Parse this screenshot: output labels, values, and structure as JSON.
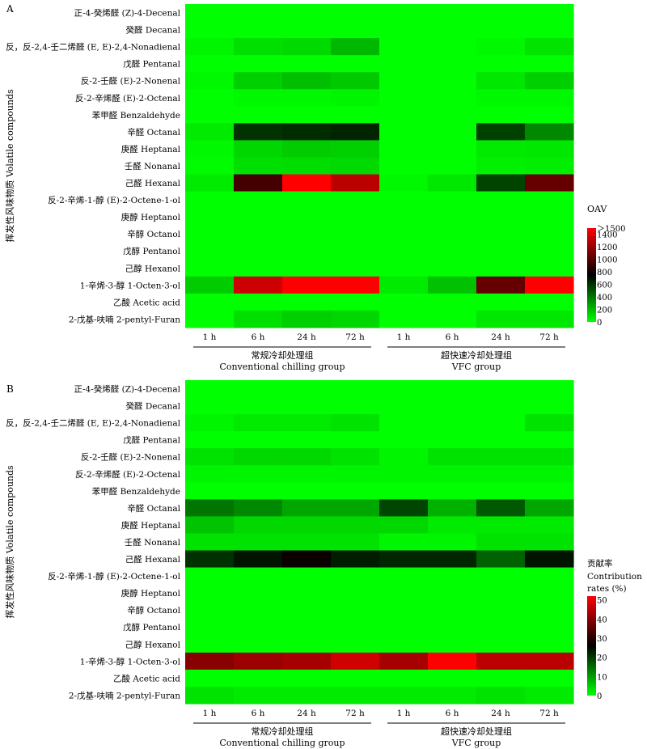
{
  "chart_data": [
    {
      "type": "heatmap",
      "panel_label": "A",
      "ylabel": "挥发性风味物质 Volatile compounds",
      "rows": [
        "正-4-癸烯醛 (Z)-4-Decenal",
        "癸醛 Decanal",
        "反，反-2,4-壬二烯醛 (E, E)-2,4-Nonadienal",
        "戊醛 Pentanal",
        "反-2-壬醛 (E)-2-Nonenal",
        "反-2-辛烯醛 (E)-2-Octenal",
        "苯甲醛 Benzaldehyde",
        "辛醛 Octanal",
        "庚醛 Heptanal",
        "壬醛 Nonanal",
        "己醛 Hexanal",
        "反-2-辛烯-1-醇 (E)-2-Octene-1-ol",
        "庚醇 Heptanol",
        "辛醇 Octanol",
        "戊醇 Pentanol",
        "己醇 Hexanol",
        "1-辛烯-3-醇 1-Octen-3-ol",
        "乙酸 Acetic acid",
        "2-戊基-呋喃 2-pentyl-Furan"
      ],
      "columns": [
        "1 h",
        "6 h",
        "24 h",
        "72 h",
        "1 h",
        "6 h",
        "24 h",
        "72 h"
      ],
      "groups": [
        {
          "label_cn": "常规冷却处理组",
          "label_en": "Conventional chilling group"
        },
        {
          "label_cn": "超快速冷却处理组",
          "label_en": "VFC group"
        }
      ],
      "values": [
        [
          0,
          0,
          0,
          0,
          0,
          0,
          0,
          0
        ],
        [
          0,
          0,
          0,
          0,
          0,
          0,
          0,
          0
        ],
        [
          30,
          90,
          110,
          210,
          0,
          0,
          20,
          80
        ],
        [
          0,
          0,
          0,
          0,
          0,
          0,
          0,
          0
        ],
        [
          20,
          140,
          190,
          160,
          0,
          0,
          70,
          140
        ],
        [
          0,
          20,
          20,
          30,
          0,
          0,
          20,
          20
        ],
        [
          0,
          0,
          0,
          0,
          0,
          0,
          0,
          0
        ],
        [
          60,
          600,
          620,
          640,
          0,
          0,
          560,
          350
        ],
        [
          20,
          120,
          150,
          140,
          0,
          0,
          60,
          70
        ],
        [
          10,
          90,
          100,
          110,
          0,
          0,
          40,
          50
        ],
        [
          60,
          950,
          1500,
          1300,
          20,
          70,
          550,
          1050
        ],
        [
          0,
          0,
          0,
          0,
          0,
          0,
          0,
          0
        ],
        [
          0,
          0,
          0,
          0,
          0,
          0,
          0,
          0
        ],
        [
          0,
          0,
          0,
          0,
          0,
          0,
          0,
          0
        ],
        [
          0,
          0,
          0,
          0,
          0,
          0,
          0,
          0
        ],
        [
          0,
          0,
          0,
          0,
          0,
          0,
          0,
          0
        ],
        [
          150,
          1350,
          1500,
          1500,
          60,
          180,
          1050,
          1500
        ],
        [
          0,
          0,
          0,
          0,
          0,
          0,
          0,
          0
        ],
        [
          0,
          90,
          140,
          120,
          0,
          0,
          70,
          70
        ]
      ],
      "colorbar": {
        "title": "OAV",
        "min": 0,
        "max": 1500,
        "ticks": [
          0,
          200,
          400,
          600,
          800,
          1000,
          1200,
          1400
        ],
        "top_label": "＞1500",
        "colors": {
          "low": "#00ff00",
          "mid": "#000000",
          "high": "#ff0000"
        }
      }
    },
    {
      "type": "heatmap",
      "panel_label": "B",
      "ylabel": "挥发性风味物质 Volatile compounds",
      "rows": [
        "正-4-癸烯醛 (Z)-4-Decenal",
        "癸醛 Decanal",
        "反，反-2,4-壬二烯醛 (E, E)-2,4-Nonadienal",
        "戊醛 Pentanal",
        "反-2-壬醛 (E)-2-Nonenal",
        "反-2-辛烯醛 (E)-2-Octenal",
        "苯甲醛 Benzaldehyde",
        "辛醛 Octanal",
        "庚醛 Heptanal",
        "壬醛 Nonanal",
        "己醛 Hexanal",
        "反-2-辛烯-1-醇 (E)-2-Octene-1-ol",
        "庚醇 Heptanol",
        "辛醇 Octanol",
        "戊醇 Pentanol",
        "己醇 Hexanol",
        "1-辛烯-3-醇 1-Octen-3-ol",
        "乙酸 Acetic acid",
        "2-戊基-呋喃 2-pentyl-Furan"
      ],
      "columns": [
        "1 h",
        "6 h",
        "24 h",
        "72 h",
        "1 h",
        "6 h",
        "24 h",
        "72 h"
      ],
      "groups": [
        {
          "label_cn": "常规冷却处理组",
          "label_en": "Conventional chilling group"
        },
        {
          "label_cn": "超快速冷却处理组",
          "label_en": "VFC group"
        }
      ],
      "values": [
        [
          0,
          0,
          0,
          0,
          0,
          0,
          0,
          0
        ],
        [
          0,
          0,
          0,
          0,
          0,
          0,
          0,
          0
        ],
        [
          1,
          2,
          2,
          3,
          0,
          0,
          0,
          3
        ],
        [
          0,
          0,
          0,
          0,
          0,
          0,
          0,
          0
        ],
        [
          3,
          4,
          4,
          3,
          1,
          3,
          3,
          3
        ],
        [
          1,
          1,
          1,
          1,
          1,
          1,
          1,
          1
        ],
        [
          0,
          0,
          0,
          0,
          0,
          0,
          0,
          0
        ],
        [
          14,
          12,
          9,
          9,
          19,
          8,
          17,
          9
        ],
        [
          6,
          4,
          4,
          4,
          4,
          2,
          2,
          2
        ],
        [
          3,
          3,
          3,
          3,
          1,
          1,
          3,
          3
        ],
        [
          21,
          24,
          27,
          23,
          22,
          22,
          16,
          24
        ],
        [
          0,
          0,
          0,
          0,
          0,
          0,
          0,
          0
        ],
        [
          0,
          0,
          0,
          0,
          0,
          0,
          0,
          0
        ],
        [
          0,
          0,
          0,
          0,
          0,
          0,
          0,
          0
        ],
        [
          0,
          0,
          0,
          0,
          0,
          0,
          0,
          0
        ],
        [
          0,
          0,
          0,
          0,
          0,
          0,
          0,
          0
        ],
        [
          40,
          42,
          43,
          47,
          43,
          52,
          45,
          45
        ],
        [
          0,
          0,
          0,
          0,
          0,
          0,
          0,
          0
        ],
        [
          3,
          2,
          2,
          2,
          2,
          2,
          3,
          2
        ]
      ],
      "colorbar": {
        "title": "贡献率 Contribution rates (%)",
        "title_lines": [
          "贡献率",
          "Contribution",
          "rates (%)"
        ],
        "min": 0,
        "max": 52,
        "ticks": [
          0,
          10,
          20,
          30,
          40,
          50
        ],
        "colors": {
          "low": "#00ff00",
          "mid": "#000000",
          "high": "#ff0000"
        }
      }
    }
  ]
}
